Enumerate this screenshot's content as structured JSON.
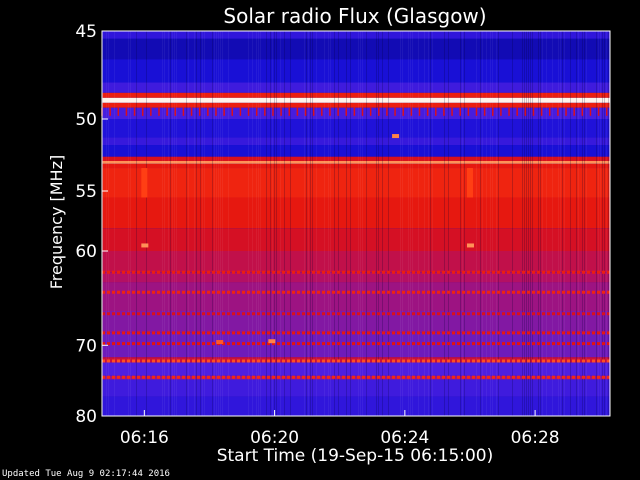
{
  "chart_data": {
    "type": "heatmap",
    "title": "Solar radio Flux (Glasgow)",
    "xlabel": "Start Time (19-Sep-15 06:15:00)",
    "ylabel": "Frequency [MHz]",
    "x_ticks": [
      "06:16",
      "06:20",
      "06:24",
      "06:28"
    ],
    "x_tick_minutes": [
      1,
      5,
      9,
      13
    ],
    "xlim_minutes": [
      -0.3,
      15.3
    ],
    "y_ticks": [
      45,
      50,
      55,
      60,
      70,
      80
    ],
    "ylim": [
      45,
      80
    ],
    "y_scale": "reciprocal",
    "colormap": [
      "#000060",
      "#1a10d8",
      "#5020e0",
      "#b0106a",
      "#e01010",
      "#ff3a10",
      "#ffb070",
      "#ffffff"
    ],
    "bands": [
      {
        "from": 45.0,
        "to": 45.4,
        "level": 0.2
      },
      {
        "from": 45.4,
        "to": 46.5,
        "level": 0.1
      },
      {
        "from": 46.5,
        "to": 47.8,
        "level": 0.14
      },
      {
        "from": 47.8,
        "to": 48.4,
        "level": 0.24
      },
      {
        "from": 48.4,
        "to": 48.7,
        "level": 0.62
      },
      {
        "from": 48.7,
        "to": 49.0,
        "level": 0.98
      },
      {
        "from": 49.0,
        "to": 49.3,
        "level": 0.62
      },
      {
        "from": 49.3,
        "to": 50.0,
        "level": 0.26
      },
      {
        "from": 50.0,
        "to": 51.2,
        "level": 0.16
      },
      {
        "from": 51.2,
        "to": 51.7,
        "level": 0.22
      },
      {
        "from": 51.7,
        "to": 52.5,
        "level": 0.14
      },
      {
        "from": 52.5,
        "to": 52.8,
        "level": 0.55
      },
      {
        "from": 52.8,
        "to": 53.0,
        "level": 0.82
      },
      {
        "from": 53.0,
        "to": 53.3,
        "level": 0.6
      },
      {
        "from": 53.3,
        "to": 55.5,
        "level": 0.64
      },
      {
        "from": 55.5,
        "to": 58.0,
        "level": 0.6
      },
      {
        "from": 58.0,
        "to": 60.0,
        "level": 0.54
      },
      {
        "from": 60.0,
        "to": 62.0,
        "level": 0.48
      },
      {
        "from": 62.0,
        "to": 63.0,
        "level": 0.44
      },
      {
        "from": 63.0,
        "to": 66.0,
        "level": 0.4
      },
      {
        "from": 66.0,
        "to": 68.5,
        "level": 0.36
      },
      {
        "from": 68.5,
        "to": 71.5,
        "level": 0.33
      },
      {
        "from": 71.5,
        "to": 72.2,
        "level": 0.5
      },
      {
        "from": 72.2,
        "to": 74.0,
        "level": 0.28
      },
      {
        "from": 74.0,
        "to": 74.5,
        "level": 0.4
      },
      {
        "from": 74.5,
        "to": 77.0,
        "level": 0.24
      },
      {
        "from": 77.0,
        "to": 80.0,
        "level": 0.2
      }
    ],
    "lines": [
      {
        "freq": 62.0,
        "level": 0.62
      },
      {
        "freq": 64.0,
        "level": 0.64
      },
      {
        "freq": 66.3,
        "level": 0.55
      },
      {
        "freq": 68.5,
        "level": 0.6
      },
      {
        "freq": 69.8,
        "level": 0.58
      },
      {
        "freq": 72.0,
        "level": 0.74
      },
      {
        "freq": 74.2,
        "level": 0.66
      }
    ],
    "spikes": [
      {
        "minute": 1.0,
        "freq": 59.5,
        "level": 0.82
      },
      {
        "minute": 11.0,
        "freq": 59.5,
        "level": 0.82
      },
      {
        "minute": 8.7,
        "freq": 51.1,
        "level": 0.8
      },
      {
        "minute": 4.9,
        "freq": 69.5,
        "level": 0.8
      },
      {
        "minute": 3.3,
        "freq": 69.6,
        "level": 0.75
      }
    ]
  },
  "footer": {
    "updated": "Updated Tue Aug  9 02:17:44 2016"
  }
}
